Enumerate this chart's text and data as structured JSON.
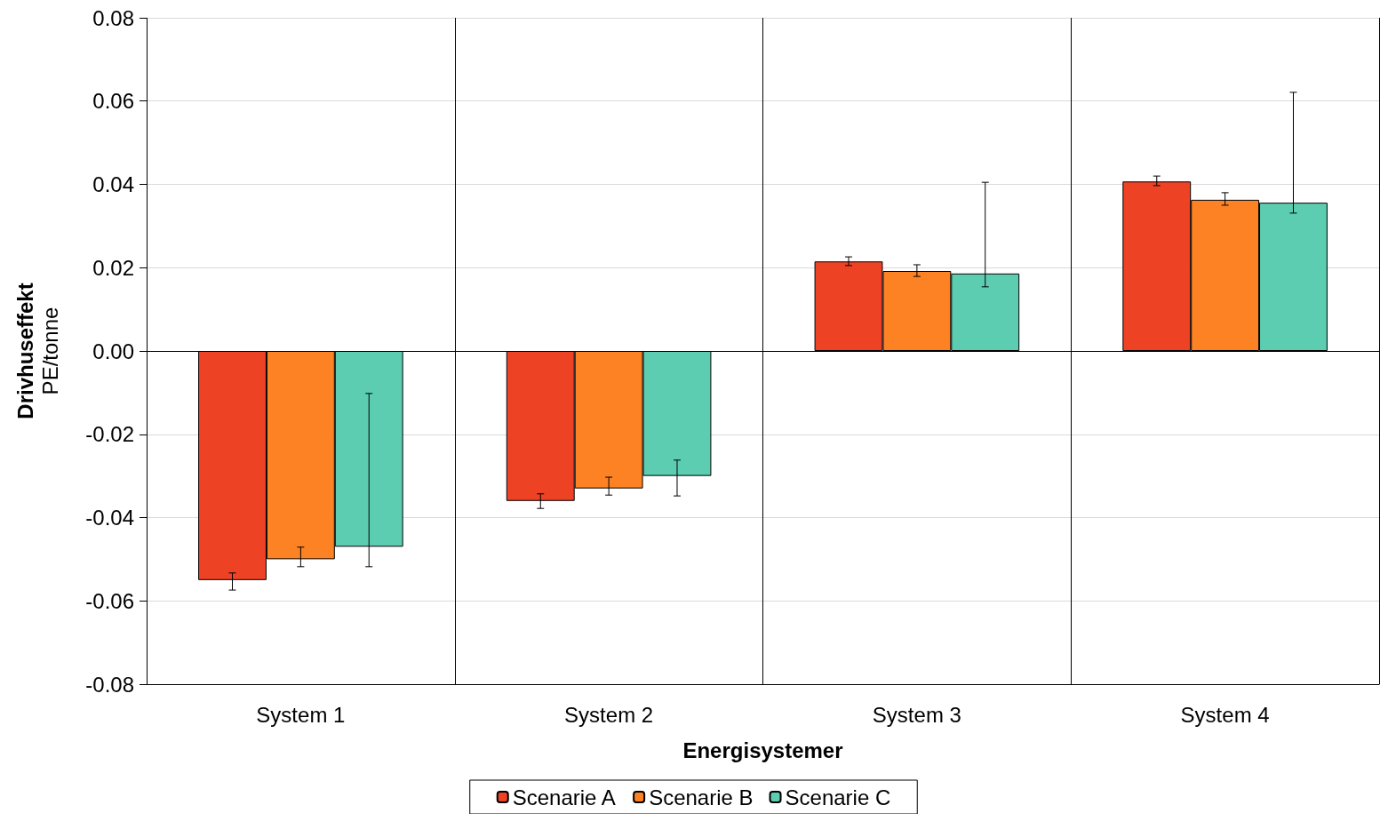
{
  "chart_data": {
    "type": "bar",
    "xlabel": "Energisystemer",
    "ylabel": "Drivhuseffekt\nPE/tonne",
    "categories": [
      "System 1",
      "System 2",
      "System 3",
      "System 4"
    ],
    "series": [
      {
        "name": "Scenarie A",
        "color": "#ee4225",
        "values": [
          -0.055,
          -0.036,
          0.0215,
          0.0407
        ],
        "errors": [
          [
            -0.0574,
            -0.0533
          ],
          [
            -0.0378,
            -0.0343
          ],
          [
            0.0205,
            0.0226
          ],
          [
            0.0397,
            0.042
          ]
        ]
      },
      {
        "name": "Scenarie B",
        "color": "#fd8224",
        "values": [
          -0.05,
          -0.033,
          0.0192,
          0.0363
        ],
        "errors": [
          [
            -0.0518,
            -0.0471
          ],
          [
            -0.0346,
            -0.0303
          ],
          [
            0.0179,
            0.0207
          ],
          [
            0.035,
            0.038
          ]
        ]
      },
      {
        "name": "Scenarie C",
        "color": "#5ccdb0",
        "values": [
          -0.047,
          -0.03,
          0.0186,
          0.0356
        ],
        "errors": [
          [
            -0.0518,
            -0.0102
          ],
          [
            -0.0348,
            -0.0262
          ],
          [
            0.0154,
            0.0405
          ],
          [
            0.0331,
            0.0621
          ]
        ]
      }
    ],
    "ylim": [
      -0.08,
      0.08
    ],
    "yticks": [
      {
        "value": -0.08,
        "label": "-0.08"
      },
      {
        "value": -0.06,
        "label": "-0.06"
      },
      {
        "value": -0.04,
        "label": "-0.04"
      },
      {
        "value": -0.02,
        "label": "-0.02"
      },
      {
        "value": 0,
        "label": "0.00"
      },
      {
        "value": 0.02,
        "label": "0.02"
      },
      {
        "value": 0.04,
        "label": "0.04"
      },
      {
        "value": 0.06,
        "label": "0.06"
      },
      {
        "value": 0.08,
        "label": "0.08"
      }
    ],
    "grid": true,
    "legend": "bottom"
  }
}
